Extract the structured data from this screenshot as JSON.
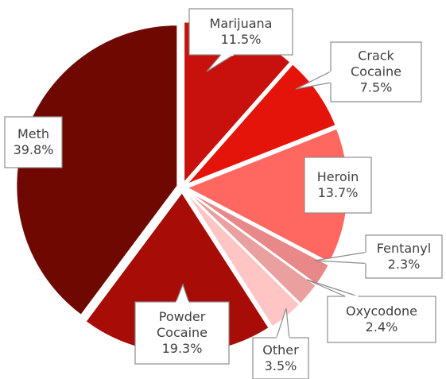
{
  "chart_data": {
    "type": "pie",
    "title": "",
    "categories": [
      "Marijuana",
      "Crack Cocaine",
      "Heroin",
      "Fentanyl",
      "Oxycodone",
      "Other",
      "Powder Cocaine",
      "Meth"
    ],
    "values": [
      11.5,
      7.5,
      13.7,
      2.3,
      2.4,
      3.5,
      19.3,
      39.8
    ],
    "value_labels": [
      "11.5%",
      "7.5%",
      "13.7%",
      "2.3%",
      "2.4%",
      "3.5%",
      "19.3%",
      "39.8%"
    ],
    "label_lines": [
      [
        "Marijuana"
      ],
      [
        "Crack",
        "Cocaine"
      ],
      [
        "Heroin"
      ],
      [
        "Fentanyl"
      ],
      [
        "Oxycodone"
      ],
      [
        "Other"
      ],
      [
        "Powder",
        "Cocaine"
      ],
      [
        "Meth"
      ]
    ],
    "colors": [
      "#C8110C",
      "#E5140A",
      "#FF6760",
      "#E88888",
      "#EBA0A0",
      "#FFC4C4",
      "#A70C06",
      "#700802"
    ],
    "start_angle_deg": 0,
    "direction": "clockwise",
    "legend": "none",
    "data_labels": "callouts"
  }
}
